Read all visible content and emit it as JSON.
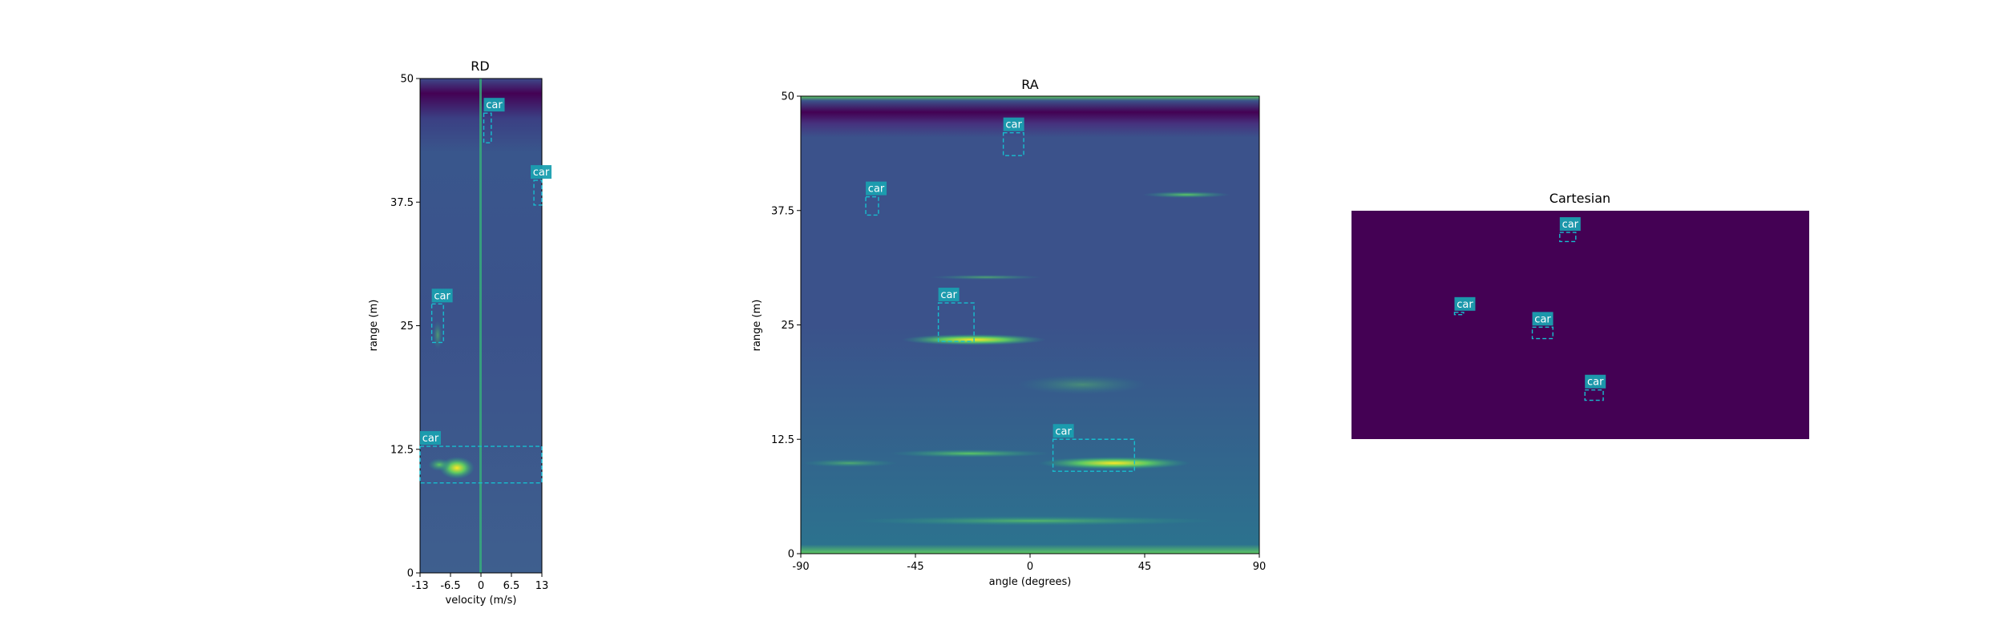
{
  "colors": {
    "background": "#ffffff",
    "heatmap_dark": "#440154",
    "heatmap_low": "#3b528b",
    "heatmap_mid": "#21918c",
    "heatmap_high": "#5ec962",
    "heatmap_peak": "#fde725",
    "box": "#17becf",
    "label_bg": "#1a9fb0"
  },
  "chart_data": [
    {
      "id": "rd",
      "type": "heatmap",
      "title": "RD",
      "xlabel": "velocity (m/s)",
      "ylabel": "range (m)",
      "xlim": [
        -13,
        13
      ],
      "ylim": [
        0,
        50
      ],
      "xticks": [
        -13,
        -6.5,
        0,
        6.5,
        13
      ],
      "xtick_labels": [
        "-13",
        "-6.5",
        "0",
        "6.5",
        "13"
      ],
      "yticks": [
        0,
        12.5,
        25,
        37.5,
        50
      ],
      "ytick_labels": [
        "0",
        "12.5",
        "25",
        "37.5",
        "50"
      ],
      "detections": [
        {
          "label": "car",
          "x0": 0.6,
          "x1": 2.2,
          "y0": 43.5,
          "y1": 46.5
        },
        {
          "label": "car",
          "x0": 11.3,
          "x1": 13.0,
          "y0": 37.2,
          "y1": 39.7
        },
        {
          "label": "car",
          "x0": -10.5,
          "x1": -8.0,
          "y0": 23.3,
          "y1": 27.2
        },
        {
          "label": "car",
          "x0": -13.0,
          "x1": 13.0,
          "y0": 9.1,
          "y1": 12.8
        }
      ]
    },
    {
      "id": "ra",
      "type": "heatmap",
      "title": "RA",
      "xlabel": "angle (degrees)",
      "ylabel": "range (m)",
      "xlim": [
        -90,
        90
      ],
      "ylim": [
        0,
        50
      ],
      "xticks": [
        -90,
        -45,
        0,
        45,
        90
      ],
      "xtick_labels": [
        "-90",
        "-45",
        "0",
        "45",
        "90"
      ],
      "yticks": [
        0,
        12.5,
        25,
        37.5,
        50
      ],
      "ytick_labels": [
        "0",
        "12.5",
        "25",
        "37.5",
        "50"
      ],
      "detections": [
        {
          "label": "car",
          "x0": -10.5,
          "x1": -2.5,
          "y0": 43.5,
          "y1": 46.0
        },
        {
          "label": "car",
          "x0": -64.5,
          "x1": -59.5,
          "y0": 37.0,
          "y1": 39.0
        },
        {
          "label": "car",
          "x0": -36.0,
          "x1": -22.0,
          "y0": 23.2,
          "y1": 27.4
        },
        {
          "label": "car",
          "x0": 9.0,
          "x1": 41.0,
          "y0": 9.0,
          "y1": 12.5
        }
      ]
    },
    {
      "id": "cartesian",
      "type": "heatmap",
      "title": "Cartesian",
      "xlim": [
        0,
        1
      ],
      "ylim": [
        0,
        1
      ],
      "detections": [
        {
          "label": "car",
          "x0": 0.455,
          "x1": 0.49,
          "y0": 0.865,
          "y1": 0.905
        },
        {
          "label": "car",
          "x0": 0.225,
          "x1": 0.245,
          "y0": 0.545,
          "y1": 0.555
        },
        {
          "label": "car",
          "x0": 0.395,
          "x1": 0.44,
          "y0": 0.44,
          "y1": 0.49
        },
        {
          "label": "car",
          "x0": 0.51,
          "x1": 0.55,
          "y0": 0.17,
          "y1": 0.215
        }
      ]
    }
  ]
}
